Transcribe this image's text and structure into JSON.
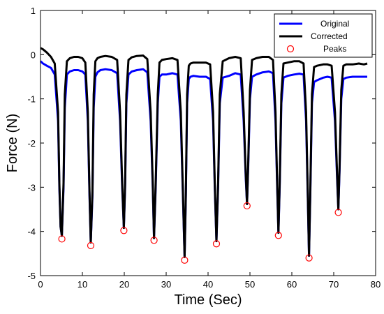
{
  "chart_data": {
    "type": "line",
    "title": "",
    "xlabel": "Time (Sec)",
    "ylabel": "Force (N)",
    "xlim": [
      0,
      80
    ],
    "ylim": [
      -5,
      1
    ],
    "xticks": [
      0,
      10,
      20,
      30,
      40,
      50,
      60,
      70,
      80
    ],
    "yticks": [
      1,
      0,
      -1,
      -2,
      -3,
      -4,
      -5
    ],
    "grid": false,
    "legend": {
      "position": "top-right",
      "entries": [
        {
          "label": "Original",
          "marker": "line",
          "color": "#0000ff"
        },
        {
          "label": "Corrected",
          "marker": "line",
          "color": "#000000"
        },
        {
          "label": "Peaks",
          "marker": "circle",
          "color": "#ff0000"
        }
      ]
    },
    "series": [
      {
        "name": "Original",
        "color": "#0000ff",
        "x": [
          0,
          0.6,
          1.5,
          2.5,
          3.4,
          4.2,
          4.5,
          4.8,
          5.1,
          5.5,
          5.8,
          6.3,
          7.0,
          8.0,
          9.0,
          10.0,
          10.7,
          11.3,
          11.7,
          12.0,
          12.4,
          12.7,
          13.1,
          13.6,
          14.3,
          15.5,
          17.0,
          18.3,
          19.0,
          19.5,
          19.9,
          20.2,
          20.5,
          21.0,
          21.8,
          23.0,
          24.5,
          25.5,
          26.3,
          26.8,
          27.1,
          27.5,
          28.0,
          28.4,
          29.0,
          30.0,
          31.5,
          32.7,
          33.5,
          34.0,
          34.4,
          34.7,
          35.0,
          35.4,
          35.8,
          36.5,
          38.0,
          39.5,
          40.5,
          41.2,
          41.6,
          42.0,
          42.4,
          42.8,
          43.5,
          45.0,
          46.5,
          47.8,
          48.5,
          49.0,
          49.3,
          49.6,
          50.0,
          50.5,
          51.5,
          53.0,
          54.5,
          55.5,
          56.1,
          56.5,
          56.8,
          57.1,
          57.5,
          58.0,
          59.0,
          60.5,
          61.8,
          62.8,
          63.4,
          63.8,
          64.1,
          64.4,
          64.8,
          65.3,
          66.0,
          67.5,
          68.5,
          69.5,
          70.3,
          70.8,
          71.1,
          71.4,
          71.8,
          72.3,
          73.0,
          74.5,
          76.0,
          77.2,
          78.0
        ],
        "y": [
          -0.15,
          -0.2,
          -0.25,
          -0.3,
          -0.45,
          -1.5,
          -3.0,
          -3.9,
          -4.1,
          -3.0,
          -1.2,
          -0.45,
          -0.38,
          -0.35,
          -0.35,
          -0.38,
          -0.45,
          -1.5,
          -3.2,
          -4.25,
          -3.2,
          -1.2,
          -0.5,
          -0.4,
          -0.35,
          -0.33,
          -0.35,
          -0.42,
          -1.5,
          -3.0,
          -3.92,
          -3.0,
          -1.1,
          -0.45,
          -0.38,
          -0.35,
          -0.33,
          -0.4,
          -1.5,
          -3.0,
          -4.15,
          -3.0,
          -1.1,
          -0.5,
          -0.45,
          -0.45,
          -0.42,
          -0.45,
          -1.5,
          -3.2,
          -4.58,
          -3.2,
          -1.1,
          -0.55,
          -0.5,
          -0.48,
          -0.5,
          -0.5,
          -0.55,
          -1.5,
          -3.0,
          -4.22,
          -3.0,
          -1.1,
          -0.52,
          -0.48,
          -0.42,
          -0.45,
          -1.5,
          -2.8,
          -3.38,
          -2.5,
          -1.0,
          -0.5,
          -0.45,
          -0.4,
          -0.38,
          -0.42,
          -1.5,
          -3.0,
          -4.03,
          -3.0,
          -1.1,
          -0.52,
          -0.48,
          -0.45,
          -0.43,
          -0.45,
          -1.5,
          -3.2,
          -4.55,
          -3.2,
          -1.1,
          -0.62,
          -0.58,
          -0.52,
          -0.5,
          -0.52,
          -1.5,
          -2.8,
          -3.5,
          -2.6,
          -1.0,
          -0.55,
          -0.52,
          -0.5,
          -0.5,
          -0.5,
          -0.5
        ]
      },
      {
        "name": "Corrected",
        "color": "#000000",
        "x": [
          0,
          0.6,
          1.5,
          2.5,
          3.4,
          4.2,
          4.5,
          4.8,
          5.1,
          5.5,
          5.8,
          6.3,
          7.0,
          8.0,
          9.0,
          10.0,
          10.7,
          11.3,
          11.7,
          12.0,
          12.4,
          12.7,
          13.1,
          13.6,
          14.3,
          15.5,
          17.0,
          18.3,
          19.0,
          19.5,
          19.9,
          20.2,
          20.5,
          21.0,
          21.8,
          23.0,
          24.5,
          25.5,
          26.3,
          26.8,
          27.1,
          27.5,
          28.0,
          28.4,
          29.0,
          30.0,
          31.5,
          32.7,
          33.5,
          34.0,
          34.4,
          34.7,
          35.0,
          35.4,
          35.8,
          36.5,
          38.0,
          39.5,
          40.5,
          41.2,
          41.6,
          42.0,
          42.4,
          42.8,
          43.5,
          45.0,
          46.5,
          47.8,
          48.5,
          49.0,
          49.3,
          49.6,
          50.0,
          50.5,
          51.5,
          53.0,
          54.5,
          55.5,
          56.1,
          56.5,
          56.8,
          57.1,
          57.5,
          58.0,
          59.0,
          60.5,
          61.8,
          62.8,
          63.4,
          63.8,
          64.1,
          64.4,
          64.8,
          65.3,
          66.0,
          67.5,
          68.5,
          69.5,
          70.3,
          70.8,
          71.1,
          71.4,
          71.8,
          72.3,
          73.0,
          74.5,
          76.0,
          77.2,
          78.0
        ],
        "y": [
          0.15,
          0.12,
          0.05,
          -0.05,
          -0.2,
          -1.3,
          -2.9,
          -3.9,
          -4.1,
          -2.9,
          -0.9,
          -0.15,
          -0.08,
          -0.05,
          -0.05,
          -0.08,
          -0.18,
          -1.3,
          -3.1,
          -4.25,
          -3.1,
          -0.9,
          -0.15,
          -0.08,
          -0.05,
          -0.03,
          -0.05,
          -0.12,
          -1.3,
          -2.9,
          -3.92,
          -2.9,
          -0.9,
          -0.12,
          -0.06,
          -0.03,
          -0.02,
          -0.1,
          -1.3,
          -2.9,
          -4.15,
          -2.9,
          -0.9,
          -0.18,
          -0.12,
          -0.1,
          -0.08,
          -0.12,
          -1.3,
          -3.1,
          -4.58,
          -3.1,
          -0.9,
          -0.25,
          -0.2,
          -0.18,
          -0.18,
          -0.18,
          -0.22,
          -1.3,
          -2.9,
          -4.22,
          -2.9,
          -0.9,
          -0.15,
          -0.08,
          -0.05,
          -0.08,
          -1.3,
          -2.7,
          -3.38,
          -2.4,
          -0.8,
          -0.12,
          -0.08,
          -0.05,
          -0.05,
          -0.12,
          -1.3,
          -2.9,
          -4.03,
          -2.9,
          -0.9,
          -0.2,
          -0.18,
          -0.15,
          -0.15,
          -0.2,
          -1.3,
          -3.1,
          -4.55,
          -3.1,
          -0.9,
          -0.28,
          -0.25,
          -0.22,
          -0.22,
          -0.25,
          -1.3,
          -2.7,
          -3.5,
          -2.5,
          -0.8,
          -0.25,
          -0.22,
          -0.22,
          -0.2,
          -0.22,
          -0.2
        ]
      },
      {
        "name": "Peaks",
        "color": "#ff0000",
        "x": [
          5.1,
          12.0,
          19.9,
          27.1,
          34.4,
          42.0,
          49.3,
          56.8,
          64.1,
          71.1
        ],
        "y": [
          -4.17,
          -4.32,
          -3.98,
          -4.2,
          -4.65,
          -4.28,
          -3.42,
          -4.09,
          -4.6,
          -3.57
        ]
      }
    ]
  }
}
